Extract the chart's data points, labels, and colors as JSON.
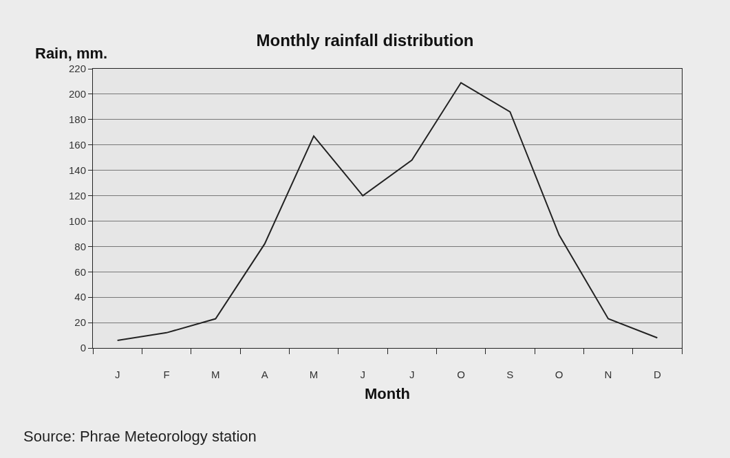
{
  "chart_data": {
    "type": "line",
    "title": "Monthly rainfall distribution",
    "ylabel": "Rain, mm.",
    "xlabel": "Month",
    "categories": [
      "J",
      "F",
      "M",
      "A",
      "M",
      "J",
      "J",
      "O",
      "S",
      "O",
      "N",
      "D"
    ],
    "series": [
      {
        "color": "#222222",
        "values": [
          6,
          12,
          23,
          82,
          167,
          120,
          148,
          209,
          186,
          89,
          23,
          8
        ]
      }
    ],
    "ylim": [
      0,
      220
    ],
    "yticks": [
      0,
      20,
      40,
      60,
      80,
      100,
      120,
      140,
      160,
      180,
      200,
      220
    ],
    "grid": "y",
    "marker": "none",
    "line_style": "solid",
    "annotations": [
      "Source: Phrae Meteorology station"
    ]
  }
}
